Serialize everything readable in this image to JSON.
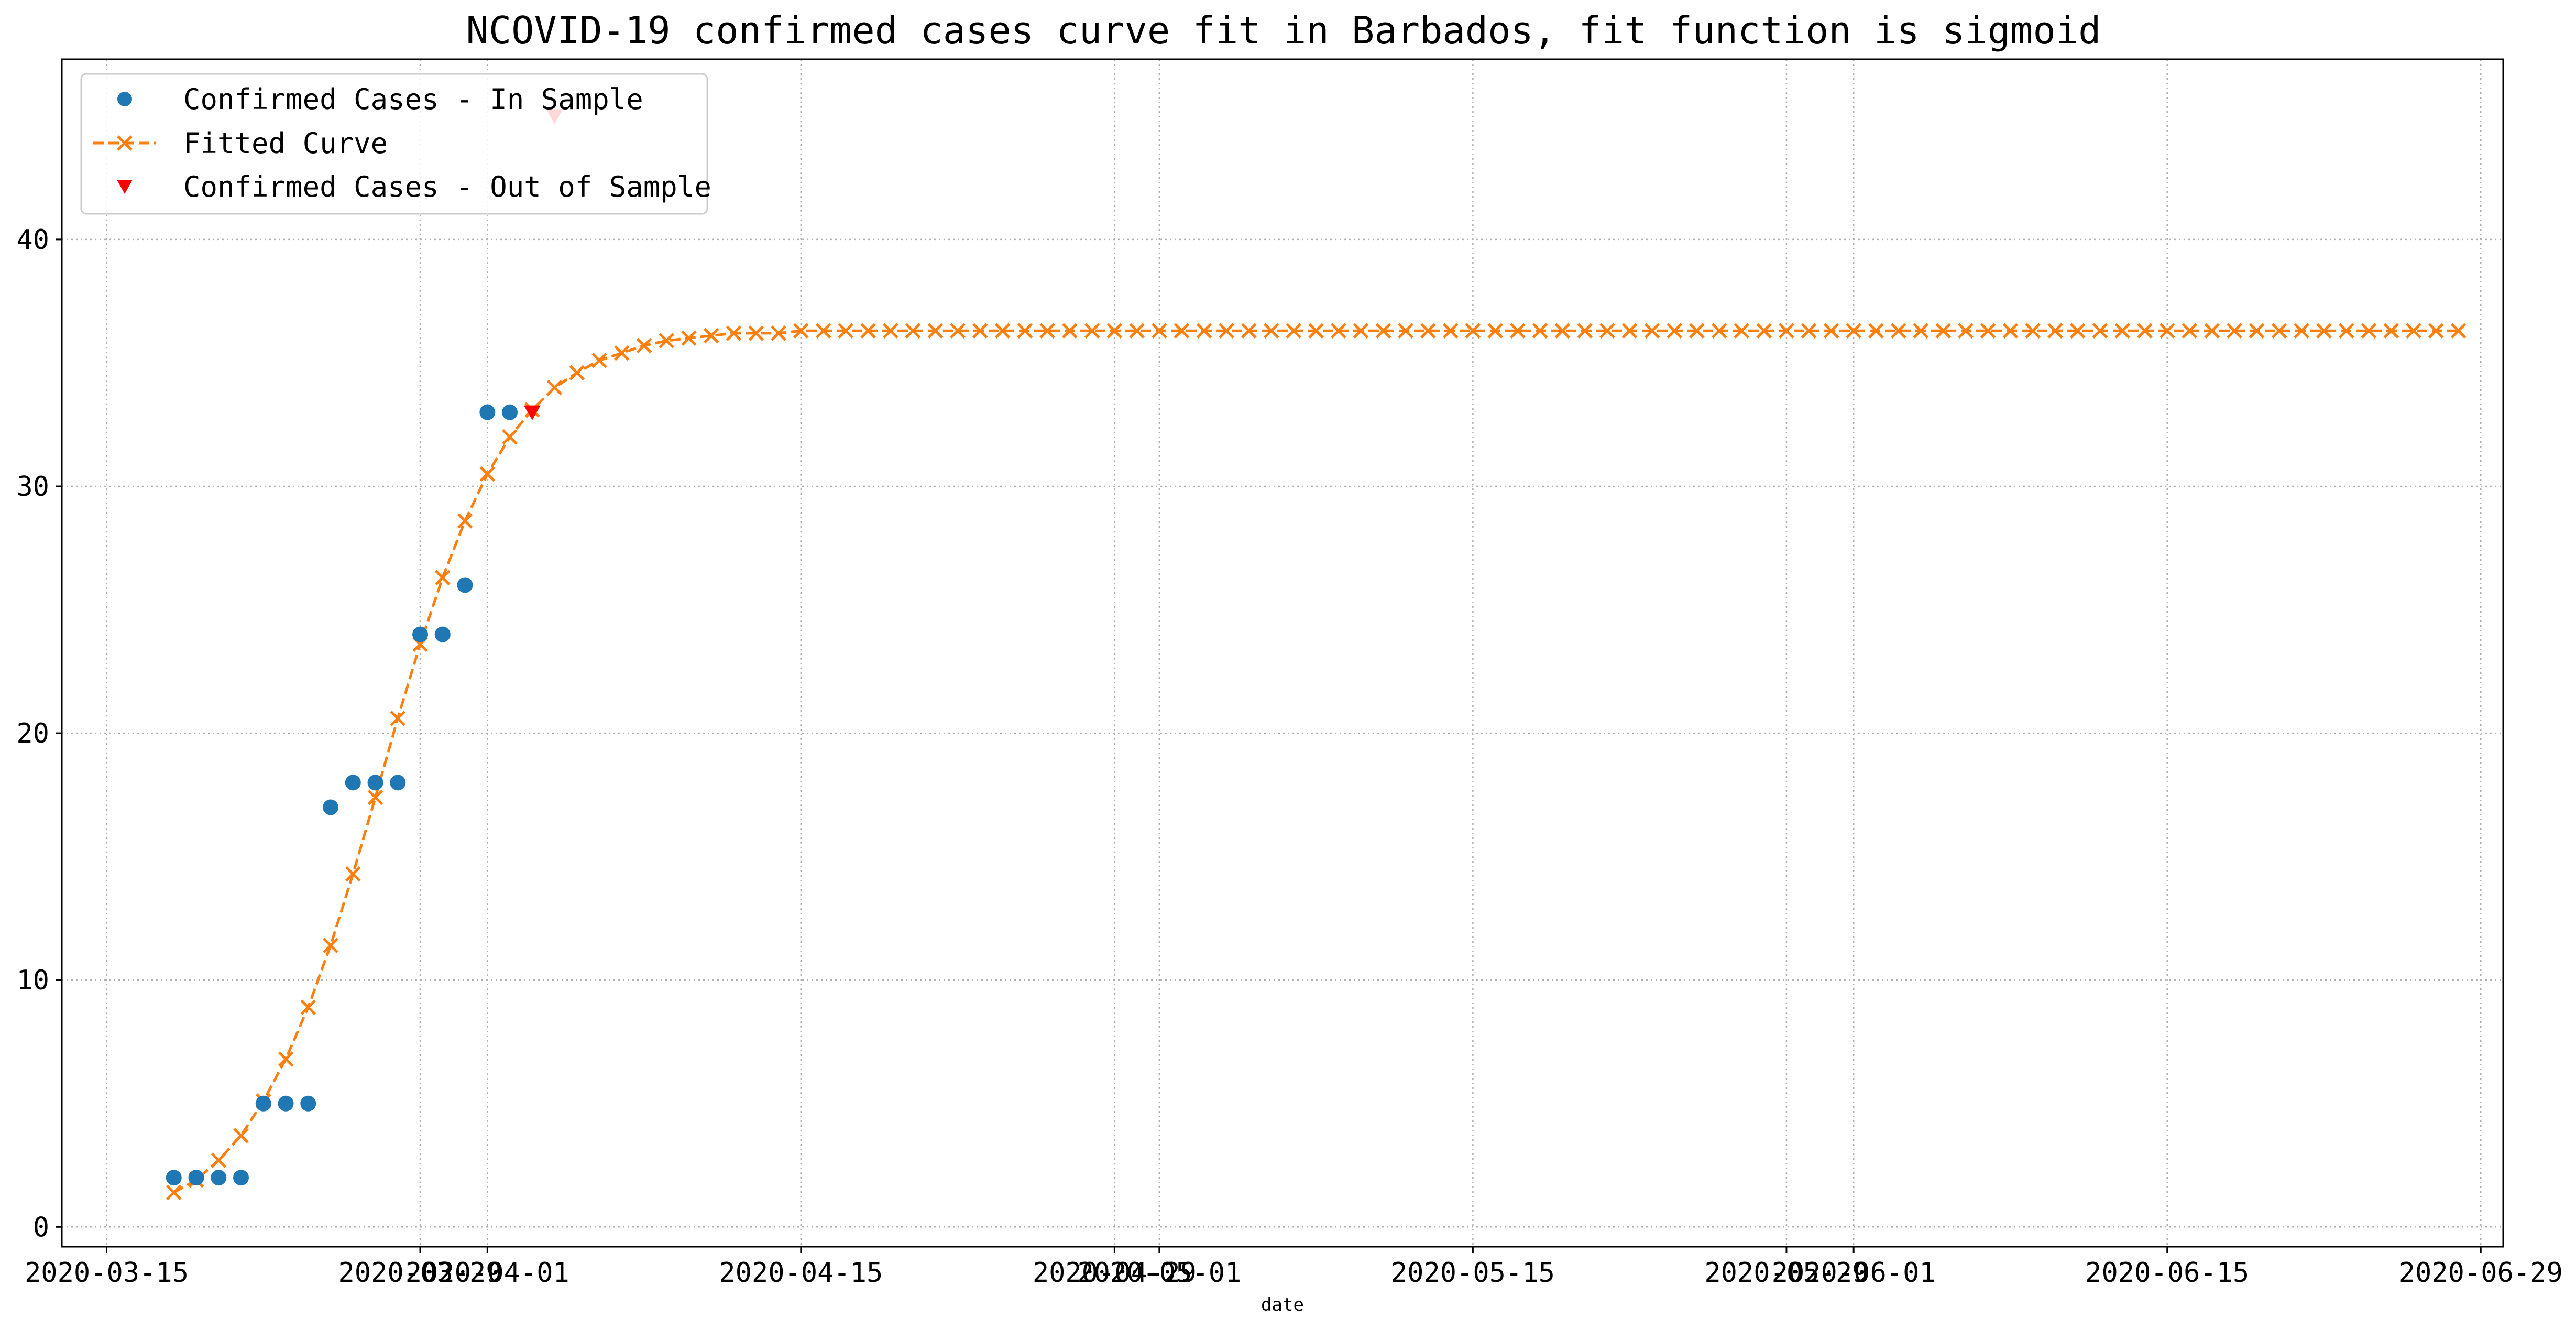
{
  "chart_data": {
    "type": "line",
    "title": "NCOVID-19 confirmed cases curve fit in Barbados, fit function is sigmoid",
    "xlabel": "date",
    "ylabel": "",
    "ylim": [
      -0.8,
      47.3
    ],
    "xlim": [
      "2020-03-13",
      "2020-06-30"
    ],
    "x_ticks": [
      "2020-03-15",
      "2020-03-29",
      "2020-04-01",
      "2020-04-15",
      "2020-04-29",
      "2020-05-01",
      "2020-05-15",
      "2020-05-29",
      "2020-06-01",
      "2020-06-15",
      "2020-06-29"
    ],
    "y_ticks": [
      0,
      10,
      20,
      30,
      40
    ],
    "grid": true,
    "legend_position": "top-left",
    "colors": {
      "in_sample": "#1f77b4",
      "fitted": "#ff7f0e",
      "out_of_sample": "#ff0000",
      "grid": "#b0b0b0"
    },
    "series": [
      {
        "name": "Confirmed Cases - In Sample",
        "style": "circle-markers",
        "x": [
          "2020-03-18",
          "2020-03-19",
          "2020-03-20",
          "2020-03-21",
          "2020-03-22",
          "2020-03-23",
          "2020-03-24",
          "2020-03-25",
          "2020-03-26",
          "2020-03-27",
          "2020-03-28",
          "2020-03-29",
          "2020-03-30",
          "2020-03-31",
          "2020-04-01",
          "2020-04-02"
        ],
        "values": [
          2,
          2,
          2,
          2,
          5,
          5,
          5,
          17,
          18,
          18,
          18,
          24,
          24,
          26,
          33,
          33
        ]
      },
      {
        "name": "Fitted Curve",
        "style": "dashed-line-x-markers",
        "x_start": "2020-03-18",
        "x_step_days": 1,
        "values": [
          1.4,
          1.9,
          2.7,
          3.7,
          5.1,
          6.8,
          8.9,
          11.4,
          14.3,
          17.4,
          20.6,
          23.6,
          26.3,
          28.6,
          30.5,
          32.0,
          33.1,
          34.0,
          34.6,
          35.1,
          35.4,
          35.7,
          35.9,
          36.0,
          36.1,
          36.2,
          36.2,
          36.2,
          36.3,
          36.3,
          36.3,
          36.3,
          36.3,
          36.3,
          36.3,
          36.3,
          36.3,
          36.3,
          36.3,
          36.3,
          36.3,
          36.3,
          36.3,
          36.3,
          36.3,
          36.3,
          36.3,
          36.3,
          36.3,
          36.3,
          36.3,
          36.3,
          36.3,
          36.3,
          36.3,
          36.3,
          36.3,
          36.3,
          36.3,
          36.3,
          36.3,
          36.3,
          36.3,
          36.3,
          36.3,
          36.3,
          36.3,
          36.3,
          36.3,
          36.3,
          36.3,
          36.3,
          36.3,
          36.3,
          36.3,
          36.3,
          36.3,
          36.3,
          36.3,
          36.3,
          36.3,
          36.3,
          36.3,
          36.3,
          36.3,
          36.3,
          36.3,
          36.3,
          36.3,
          36.3,
          36.3,
          36.3,
          36.3,
          36.3,
          36.3,
          36.3,
          36.3,
          36.3,
          36.3,
          36.3,
          36.3,
          36.3,
          36.3
        ]
      },
      {
        "name": "Confirmed Cases - Out of Sample",
        "style": "triangle-down-markers",
        "x": [
          "2020-04-03",
          "2020-04-04"
        ],
        "values": [
          33,
          45
        ]
      }
    ]
  }
}
